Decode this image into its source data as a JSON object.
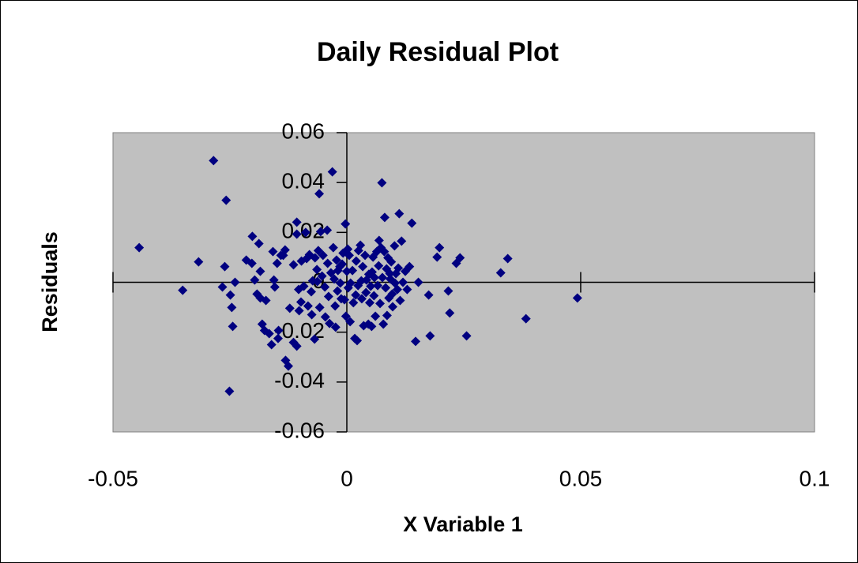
{
  "chart_data": {
    "type": "scatter",
    "title": "Daily Residual Plot",
    "x_label": "X Variable 1",
    "y_label": "Residuals",
    "color": "#000080",
    "plot_background": "#c0c0c0",
    "xlim": [
      -0.05,
      0.1
    ],
    "xticks": [
      -0.05,
      0,
      0.05,
      0.1
    ],
    "ylim": [
      -0.06,
      0.06
    ],
    "yticks": [
      -0.06,
      -0.04,
      -0.02,
      0,
      0.02,
      0.04,
      0.06
    ],
    "x": [
      -0.0444,
      -0.0351,
      -0.0317,
      -0.0285,
      -0.0258,
      -0.0261,
      -0.0266,
      -0.0249,
      -0.0246,
      -0.0244,
      -0.0251,
      -0.0239,
      -0.0215,
      -0.0203,
      -0.0202,
      -0.0197,
      -0.0192,
      -0.0188,
      -0.0185,
      -0.0185,
      -0.0181,
      -0.0176,
      -0.0173,
      -0.0166,
      -0.0161,
      -0.0158,
      -0.0156,
      -0.0154,
      -0.0149,
      -0.0147,
      -0.0146,
      -0.0141,
      -0.0136,
      -0.0132,
      -0.0131,
      -0.0125,
      -0.0122,
      -0.0114,
      -0.0114,
      -0.0107,
      -0.0107,
      -0.0107,
      -0.0103,
      -0.0102,
      -0.0098,
      -0.0097,
      -0.0092,
      -0.0088,
      -0.0086,
      -0.0083,
      -0.008,
      -0.0076,
      -0.0075,
      -0.0073,
      -0.0069,
      -0.0068,
      -0.0064,
      -0.0063,
      -0.0061,
      -0.0059,
      -0.0058,
      -0.0056,
      -0.0053,
      -0.0051,
      -0.0047,
      -0.0046,
      -0.0042,
      -0.0041,
      -0.0039,
      -0.0037,
      -0.0034,
      -0.0031,
      -0.0029,
      -0.0027,
      -0.0025,
      -0.0024,
      -0.0022,
      -0.002,
      -0.0019,
      -0.0015,
      -0.0014,
      -0.0012,
      -0.001,
      -0.0008,
      -0.0005,
      -0.0003,
      -0.0002,
      0.0,
      0.0002,
      0.0003,
      0.0005,
      0.0007,
      0.0008,
      0.0012,
      0.0014,
      0.0017,
      0.0019,
      0.002,
      0.0022,
      0.0024,
      0.0025,
      0.0029,
      0.0031,
      0.0032,
      0.0034,
      0.0036,
      0.0039,
      0.0041,
      0.0042,
      0.0046,
      0.0047,
      0.0049,
      0.0051,
      0.0053,
      0.0054,
      0.0056,
      0.0058,
      0.0059,
      0.0061,
      0.0064,
      0.0066,
      0.0068,
      0.0069,
      0.0071,
      0.0073,
      0.0075,
      0.0076,
      0.0078,
      0.008,
      0.0081,
      0.0083,
      0.0085,
      0.0086,
      0.0088,
      0.009,
      0.0092,
      0.0093,
      0.0095,
      0.0097,
      0.0098,
      0.0102,
      0.0103,
      0.0105,
      0.0108,
      0.011,
      0.0112,
      0.0114,
      0.0117,
      0.012,
      0.0125,
      0.0129,
      0.0134,
      0.0139,
      0.0147,
      0.0153,
      0.0175,
      0.0178,
      0.0193,
      0.0198,
      0.0217,
      0.022,
      0.0234,
      0.0242,
      0.0256,
      0.0329,
      0.0344,
      0.0383,
      0.0493
    ],
    "values": [
      0.0139,
      -0.0032,
      0.0082,
      0.0488,
      0.0329,
      0.0063,
      -0.0019,
      -0.0051,
      -0.0101,
      -0.0177,
      -0.0437,
      0.0,
      0.0089,
      0.0076,
      0.0184,
      0.0009,
      -0.0047,
      0.0155,
      0.0044,
      -0.0063,
      -0.0168,
      -0.0193,
      -0.0073,
      -0.0206,
      -0.025,
      0.0123,
      0.0009,
      -0.0019,
      0.0076,
      -0.0225,
      -0.0193,
      0.0108,
      0.0108,
      0.013,
      -0.0313,
      -0.0336,
      -0.0104,
      0.007,
      -0.0241,
      -0.0256,
      0.0241,
      0.0193,
      -0.0029,
      -0.0114,
      -0.0079,
      0.0085,
      -0.0016,
      0.02,
      0.0095,
      -0.0095,
      0.0111,
      -0.0038,
      -0.013,
      0.0006,
      -0.0228,
      0.0098,
      0.0051,
      0.0003,
      0.0127,
      0.0355,
      -0.0101,
      0.0203,
      0.0025,
      0.0108,
      -0.0019,
      -0.0139,
      0.0209,
      0.0076,
      -0.0057,
      -0.0165,
      0.0038,
      0.0443,
      0.0139,
      0.0013,
      -0.0095,
      -0.018,
      0.0089,
      -0.0035,
      0.0047,
      0.0063,
      -0.0003,
      -0.0066,
      0.0073,
      0.0117,
      -0.007,
      0.0234,
      -0.0136,
      0.0044,
      0.0133,
      -0.0022,
      0.0108,
      -0.0158,
      -0.0003,
      0.0047,
      -0.0082,
      -0.0225,
      -0.0051,
      0.0085,
      -0.0234,
      -0.0013,
      0.0127,
      0.0149,
      0.0006,
      -0.0066,
      0.0063,
      -0.0174,
      0.0108,
      -0.0041,
      0.0009,
      -0.0168,
      0.0032,
      -0.0082,
      -0.0016,
      -0.0177,
      0.0041,
      0.0101,
      -0.0054,
      0.0019,
      -0.0136,
      0.0123,
      -0.0013,
      0.0066,
      0.0168,
      -0.0085,
      0.0139,
      0.0399,
      0.0019,
      -0.0168,
      0.0123,
      0.026,
      -0.0022,
      0.0054,
      -0.0133,
      0.0098,
      -0.0063,
      0.0035,
      0.0013,
      0.0082,
      -0.0047,
      -0.0098,
      0.0146,
      -0.0003,
      0.0035,
      -0.0029,
      0.0057,
      0.0275,
      -0.0073,
      0.0165,
      0.0,
      0.0044,
      -0.0029,
      0.0063,
      0.0237,
      -0.0237,
      0.0,
      -0.0051,
      -0.0215,
      0.0101,
      0.0139,
      -0.0035,
      -0.0123,
      0.0076,
      0.0098,
      -0.0215,
      0.0038,
      0.0095,
      -0.0146,
      -0.0063
    ]
  }
}
